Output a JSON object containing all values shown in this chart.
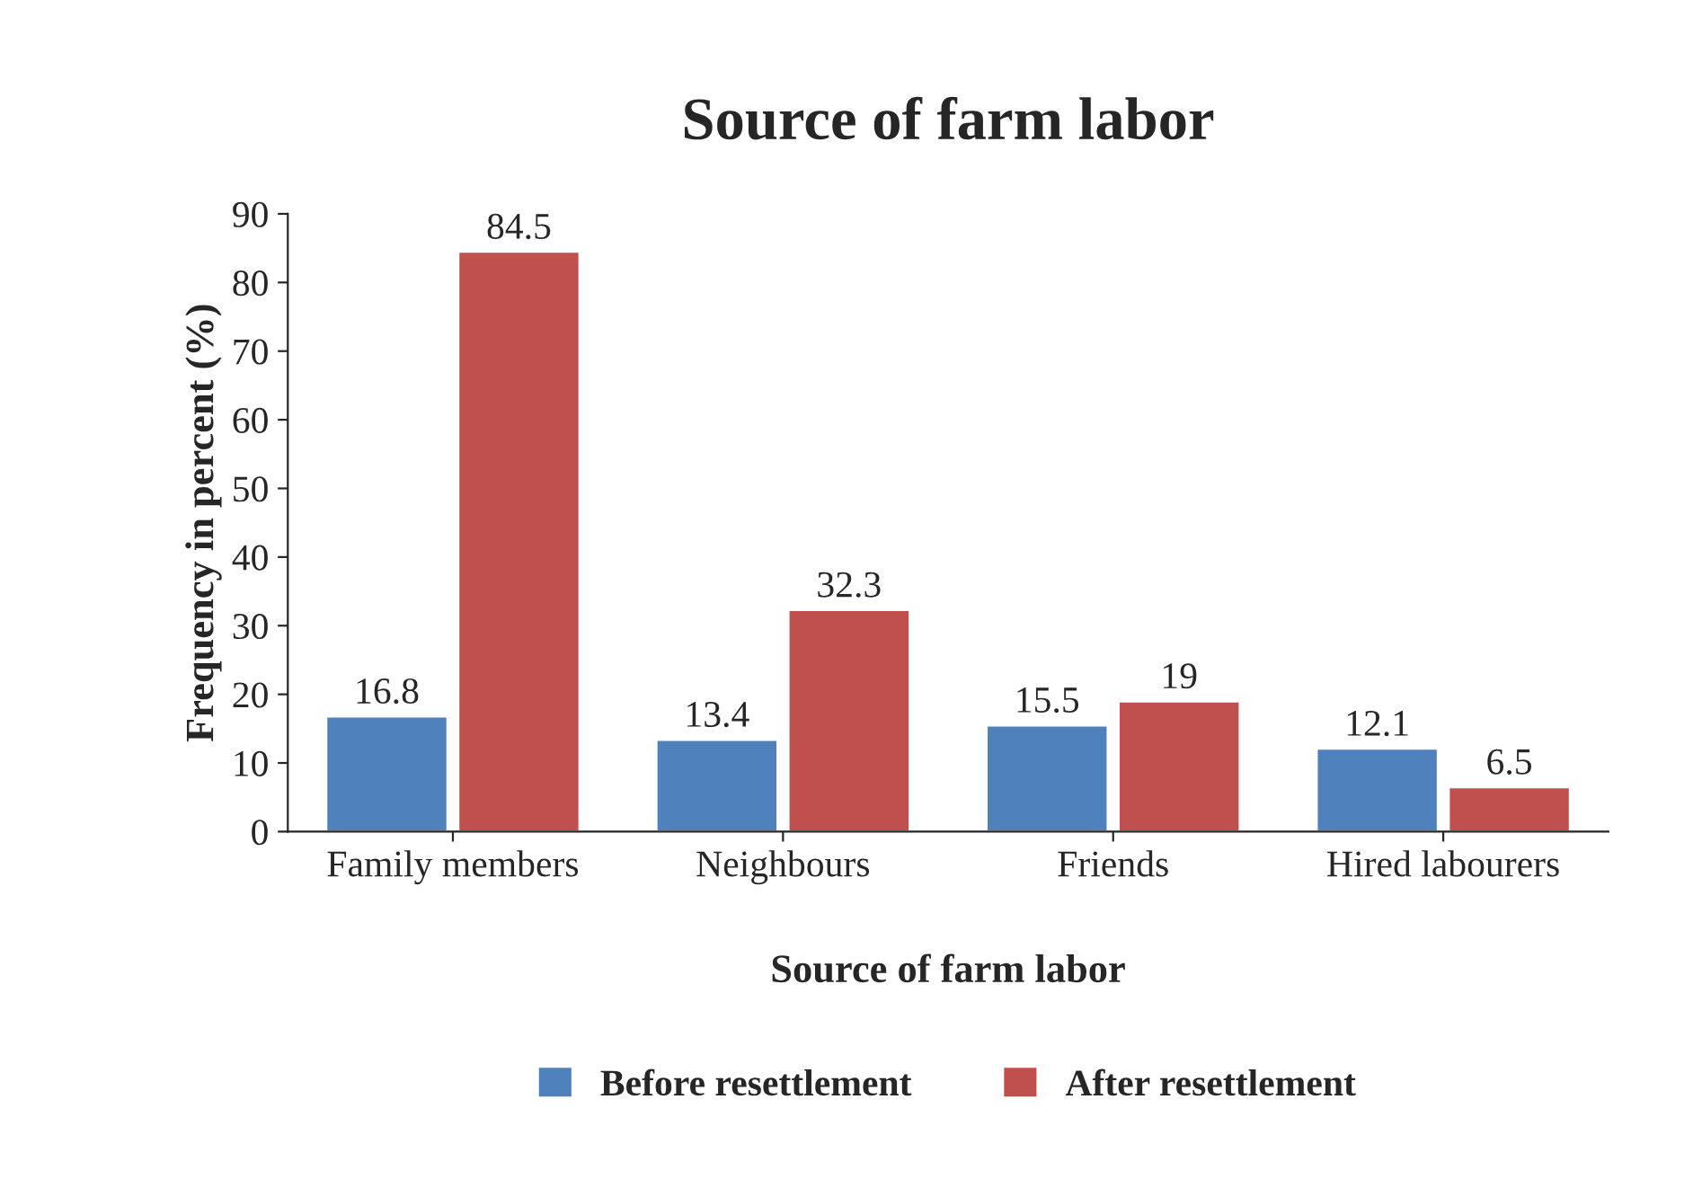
{
  "chart_data": {
    "type": "bar",
    "title": "Source of farm labor",
    "xlabel": "Source of farm labor",
    "ylabel": "Frequency in percent (%)",
    "categories": [
      "Family members",
      "Neighbours",
      "Friends",
      "Hired labourers"
    ],
    "series": [
      {
        "name": "Before resettlement",
        "color": "#4f81bd",
        "values": [
          16.8,
          13.4,
          15.5,
          12.1
        ]
      },
      {
        "name": "After resettlement",
        "color": "#c0504d",
        "values": [
          84.5,
          32.3,
          19,
          6.5
        ]
      }
    ],
    "ylim": [
      0,
      90
    ],
    "yticks": [
      0,
      10,
      20,
      30,
      40,
      50,
      60,
      70,
      80,
      90
    ],
    "data_labels": true,
    "grid": false,
    "legend": "bottom"
  }
}
